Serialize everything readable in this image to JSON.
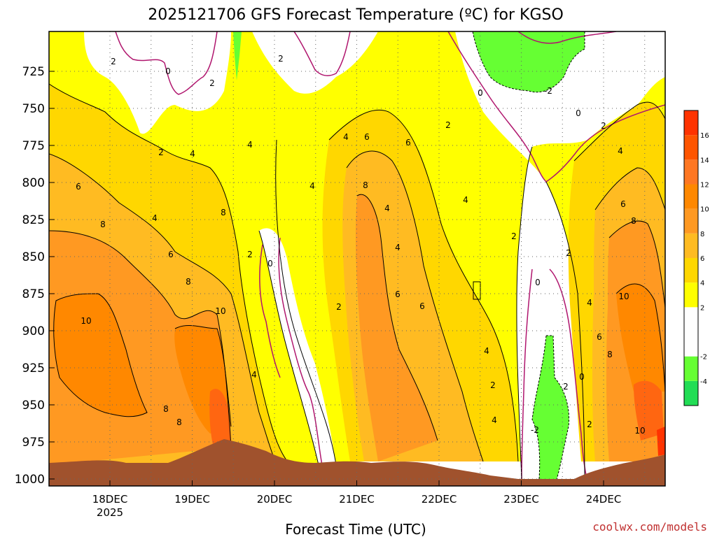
{
  "header": {
    "title": "2025121706 GFS Forecast Temperature (ºC) for KGSO"
  },
  "footer": {
    "xlabel": "Forecast Time (UTC)",
    "credit": "coolwx.com/models"
  },
  "colors": {
    "bands": [
      {
        "range": [
          -6,
          -4
        ],
        "color": "#22dd55"
      },
      {
        "range": [
          -4,
          -2
        ],
        "color": "#66ff33"
      },
      {
        "range": [
          -2,
          2
        ],
        "color": "#ffffff"
      },
      {
        "range": [
          2,
          4
        ],
        "color": "#ffff00"
      },
      {
        "range": [
          4,
          6
        ],
        "color": "#ffd700"
      },
      {
        "range": [
          6,
          8
        ],
        "color": "#ffbb22"
      },
      {
        "range": [
          8,
          10
        ],
        "color": "#ff9922"
      },
      {
        "range": [
          10,
          12
        ],
        "color": "#ff8800"
      },
      {
        "range": [
          12,
          14
        ],
        "color": "#ff7722"
      },
      {
        "range": [
          14,
          16
        ],
        "color": "#ff5500"
      },
      {
        "range": [
          16,
          18
        ],
        "color": "#ff3300"
      }
    ],
    "terrain": "#a0522d",
    "zero_contour": "#b0166e",
    "contour": "#000000"
  },
  "chart_data": {
    "type": "heatmap",
    "title": "2025121706 GFS Forecast Temperature (ºC) for KGSO",
    "xlabel": "Forecast Time (UTC)",
    "ylabel": "",
    "x_tick_labels": [
      "18DEC",
      "19DEC",
      "20DEC",
      "21DEC",
      "22DEC",
      "23DEC",
      "24DEC"
    ],
    "x_year_label": "2025",
    "y_ticks": [
      725,
      750,
      775,
      800,
      825,
      850,
      875,
      900,
      925,
      950,
      975,
      1000
    ],
    "ylim": [
      1000,
      700
    ],
    "y_inverted": true,
    "colorbar_ticks": [
      -4,
      -2,
      2,
      4,
      6,
      8,
      10,
      12,
      14,
      16
    ],
    "contour_levels": [
      -2,
      0,
      2,
      4,
      6,
      8,
      10
    ],
    "grid": true,
    "approx_temperature_by_day": [
      {
        "time": "18DEC",
        "p_975": 9,
        "p_925": 10,
        "p_850": 8,
        "p_775": 4,
        "p_725": 2
      },
      {
        "time": "19DEC",
        "p_975": 11,
        "p_925": 10,
        "p_850": 8,
        "p_775": 4,
        "p_725": 1
      },
      {
        "time": "20DEC",
        "p_975": 2,
        "p_925": 3,
        "p_850": 1,
        "p_775": 4,
        "p_725": 2
      },
      {
        "time": "21DEC",
        "p_975": 8,
        "p_925": 6,
        "p_850": 8,
        "p_775": 6,
        "p_725": 3
      },
      {
        "time": "22DEC",
        "p_975": 8,
        "p_925": 5,
        "p_850": 4,
        "p_775": 2,
        "p_725": 1
      },
      {
        "time": "23DEC",
        "p_975": -1,
        "p_925": -2,
        "p_850": 1,
        "p_775": 0,
        "p_725": -1
      },
      {
        "time": "24DEC",
        "p_975": 10,
        "p_925": 9,
        "p_850": 8,
        "p_775": 4,
        "p_725": 2
      }
    ],
    "contour_labels": [
      "2",
      "0",
      "2",
      "4",
      "6",
      "8",
      "10",
      "2",
      "0",
      "2",
      "4",
      "6",
      "8",
      "4",
      "6",
      "8",
      "10",
      "2",
      "4",
      "6",
      "4",
      "6",
      "4",
      "2",
      "0",
      "-2",
      "2",
      "0",
      "-2",
      "0",
      "2",
      "4",
      "6",
      "8",
      "10",
      "4",
      "6",
      "8",
      "10",
      "2",
      "4",
      "2"
    ]
  }
}
